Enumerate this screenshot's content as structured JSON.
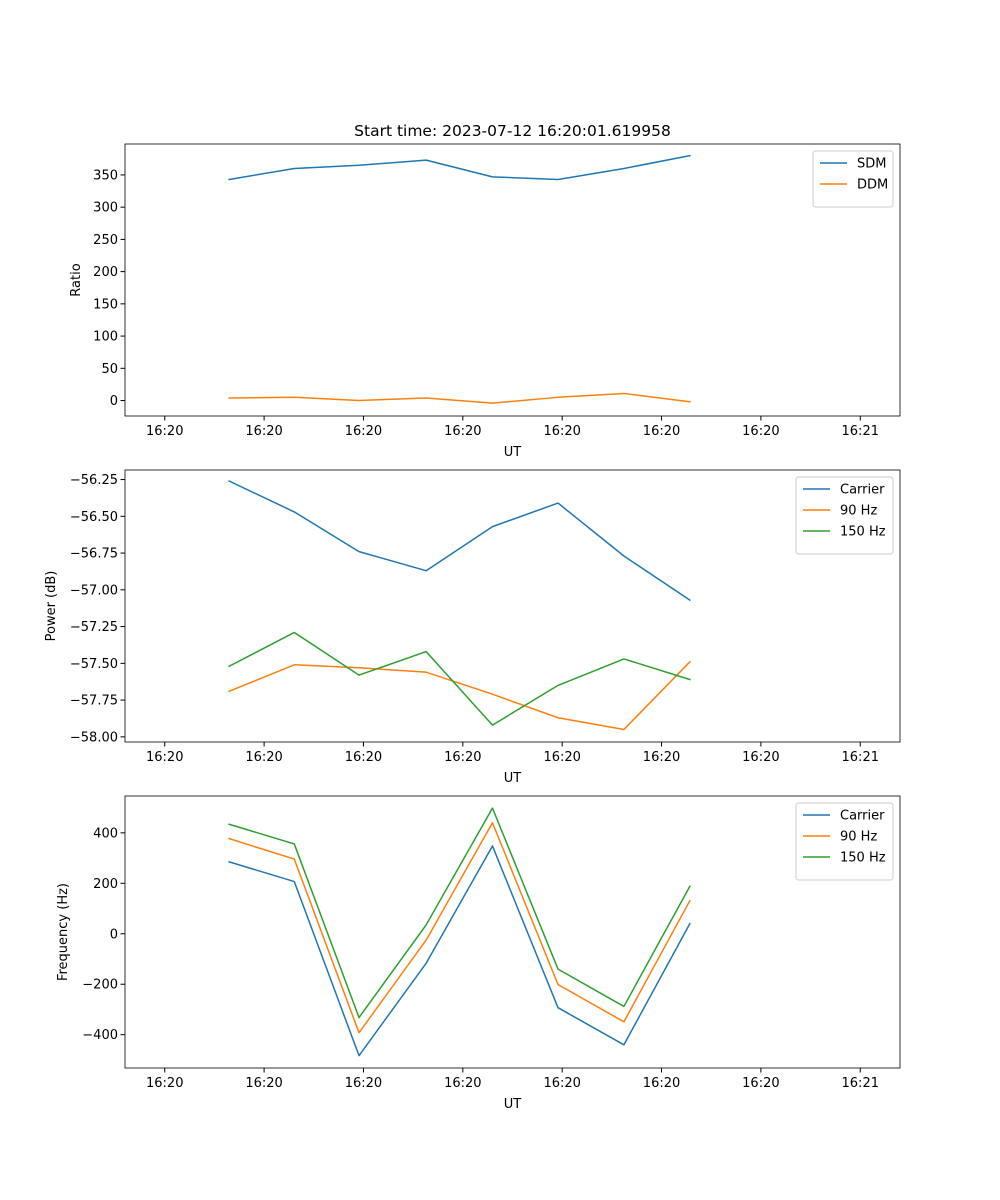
{
  "figure": {
    "title": "Start time: 2023-07-12 16:20:01.619958",
    "background": "#ffffff"
  },
  "colors": {
    "blue": "#1f77b4",
    "orange": "#ff7f0e",
    "green": "#2ca02c"
  },
  "chart_data": [
    {
      "type": "line",
      "xlabel": "UT",
      "ylabel": "Ratio",
      "xlim": [
        -0.1,
        1.85
      ],
      "x_ticks": [
        0,
        0.25,
        0.5,
        0.75,
        1.0,
        1.25,
        1.5,
        1.75
      ],
      "x_tick_labels": [
        "16:20",
        "16:20",
        "16:20",
        "16:20",
        "16:20",
        "16:20",
        "16:20",
        "16:21"
      ],
      "ylim": [
        -24,
        398
      ],
      "y_ticks": [
        0,
        50,
        100,
        150,
        200,
        250,
        300,
        350
      ],
      "y_tick_labels": [
        "0",
        "50",
        "100",
        "150",
        "200",
        "250",
        "300",
        "350"
      ],
      "legend_position": "top-right",
      "x": [
        0.1619958,
        0.3259,
        0.4888,
        0.6577,
        0.8246,
        0.9895,
        1.1553,
        1.3212
      ],
      "series": [
        {
          "name": "SDM",
          "color": "#1f77b4",
          "values": [
            343,
            360,
            365,
            373,
            347,
            343,
            360,
            380
          ]
        },
        {
          "name": "DDM",
          "color": "#ff7f0e",
          "values": [
            4,
            5,
            0,
            4,
            -4,
            5,
            11,
            -2
          ]
        }
      ]
    },
    {
      "type": "line",
      "xlabel": "UT",
      "ylabel": "Power (dB)",
      "xlim": [
        -0.1,
        1.85
      ],
      "x_ticks": [
        0,
        0.25,
        0.5,
        0.75,
        1.0,
        1.25,
        1.5,
        1.75
      ],
      "x_tick_labels": [
        "16:20",
        "16:20",
        "16:20",
        "16:20",
        "16:20",
        "16:20",
        "16:20",
        "16:21"
      ],
      "ylim": [
        -58.035,
        -56.185
      ],
      "y_ticks": [
        -58.0,
        -57.75,
        -57.5,
        -57.25,
        -57.0,
        -56.75,
        -56.5,
        -56.25
      ],
      "y_tick_labels": [
        "−58.00",
        "−57.75",
        "−57.50",
        "−57.25",
        "−57.00",
        "−56.75",
        "−56.50",
        "−56.25"
      ],
      "legend_position": "top-right",
      "x": [
        0.1619958,
        0.3259,
        0.4888,
        0.6577,
        0.8246,
        0.9895,
        1.1553,
        1.3212
      ],
      "series": [
        {
          "name": "Carrier",
          "color": "#1f77b4",
          "values": [
            -56.26,
            -56.47,
            -56.74,
            -56.87,
            -56.57,
            -56.41,
            -56.77,
            -57.07
          ]
        },
        {
          "name": "90 Hz",
          "color": "#ff7f0e",
          "values": [
            -57.69,
            -57.51,
            -57.53,
            -57.56,
            -57.71,
            -57.87,
            -57.95,
            -57.49
          ]
        },
        {
          "name": "150 Hz",
          "color": "#2ca02c",
          "values": [
            -57.52,
            -57.29,
            -57.58,
            -57.42,
            -57.92,
            -57.65,
            -57.47,
            -57.61
          ]
        }
      ]
    },
    {
      "type": "line",
      "xlabel": "UT",
      "ylabel": "Frequency (Hz)",
      "xlim": [
        -0.1,
        1.85
      ],
      "x_ticks": [
        0,
        0.25,
        0.5,
        0.75,
        1.0,
        1.25,
        1.5,
        1.75
      ],
      "x_tick_labels": [
        "16:20",
        "16:20",
        "16:20",
        "16:20",
        "16:20",
        "16:20",
        "16:20",
        "16:21"
      ],
      "ylim": [
        -532,
        546
      ],
      "y_ticks": [
        -400,
        -200,
        0,
        200,
        400
      ],
      "y_tick_labels": [
        "−400",
        "−200",
        "0",
        "200",
        "400"
      ],
      "legend_position": "top-right",
      "x": [
        0.1619958,
        0.3259,
        0.4888,
        0.6577,
        0.8246,
        0.9895,
        1.1553,
        1.3212
      ],
      "series": [
        {
          "name": "Carrier",
          "color": "#1f77b4",
          "values": [
            285,
            207,
            -483,
            -117,
            348,
            -293,
            -440,
            40
          ]
        },
        {
          "name": "90 Hz",
          "color": "#ff7f0e",
          "values": [
            377,
            296,
            -392,
            -25,
            440,
            -201,
            -349,
            131
          ]
        },
        {
          "name": "150 Hz",
          "color": "#2ca02c",
          "values": [
            434,
            356,
            -332,
            35,
            498,
            -140,
            -288,
            188
          ]
        }
      ]
    }
  ]
}
